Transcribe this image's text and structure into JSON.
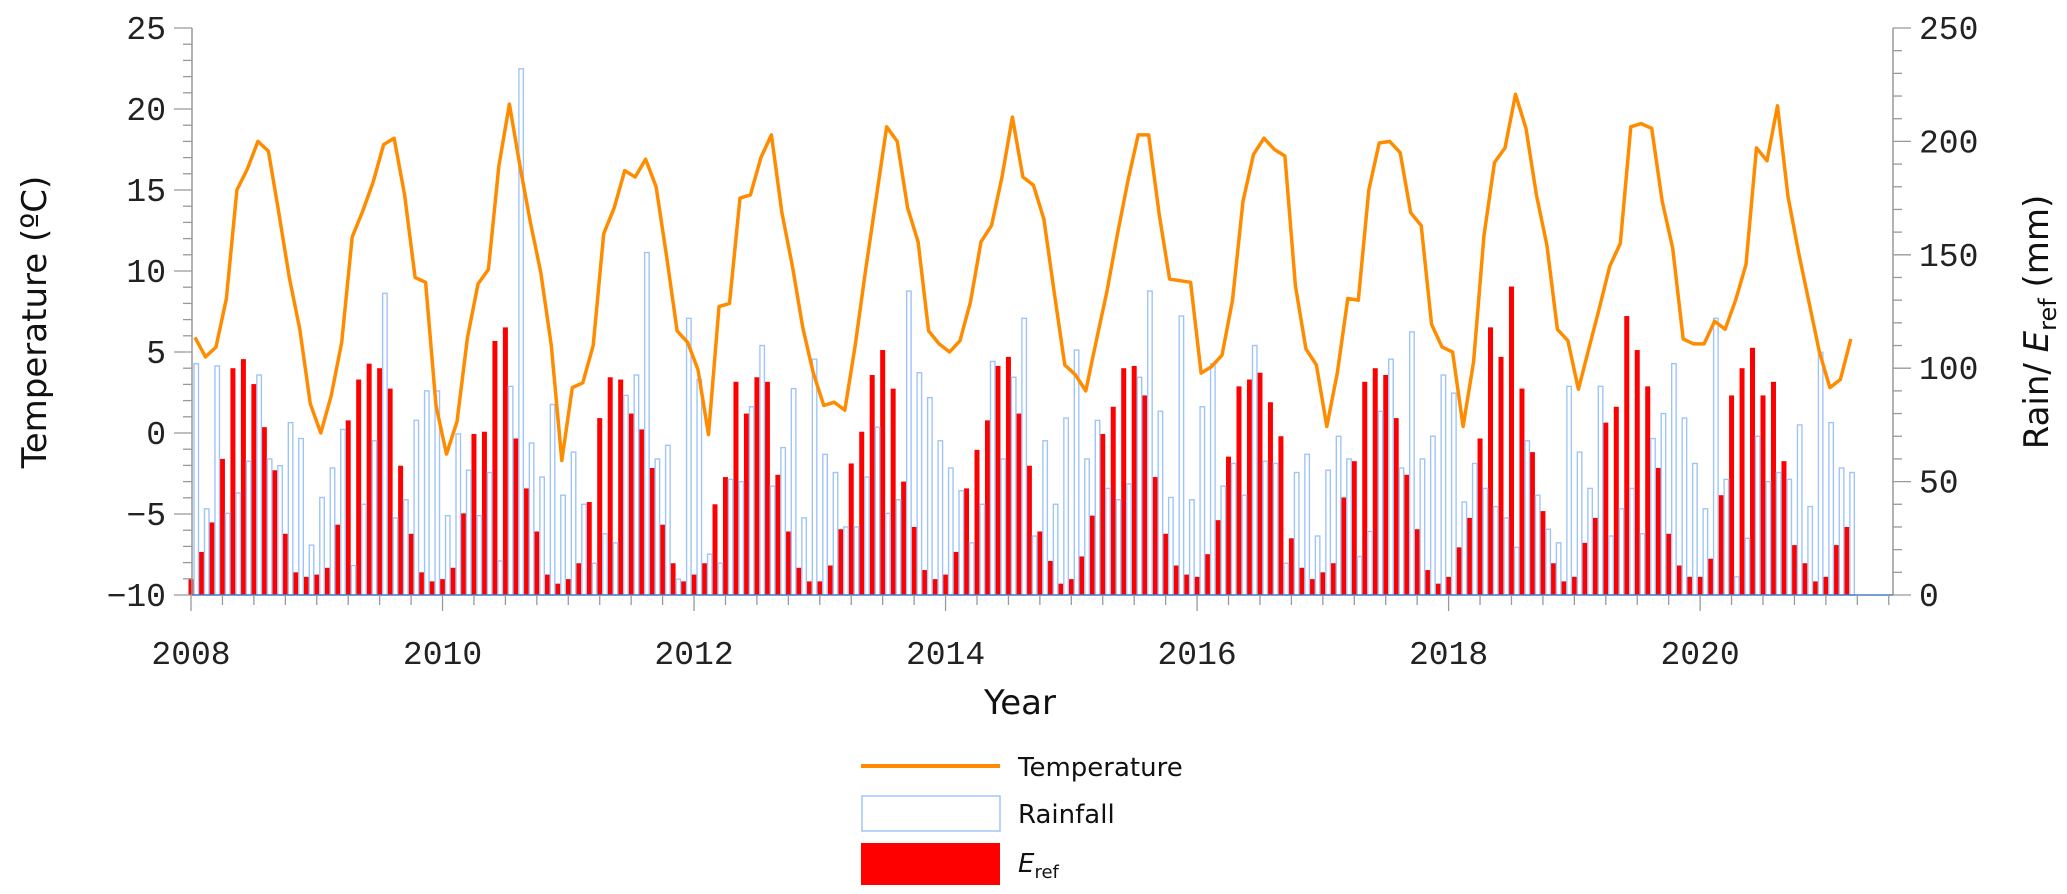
{
  "chart_data": {
    "type": "bar+line",
    "title": "",
    "xlabel": "Year",
    "ylabel_left": "Temperature (ºC)",
    "ylabel_right": {
      "prefix": "Rain/ ",
      "italic": "E",
      "sub": "ref",
      "suffix": " (mm)"
    },
    "start_month": "2008-01",
    "x_ticks": [
      "2008",
      "2010",
      "2012",
      "2014",
      "2016",
      "2018",
      "2020"
    ],
    "y_left_ticks": [
      "25",
      "20",
      "15",
      "10",
      "5",
      "0",
      "−10"
    ],
    "y_left_tick_values": [
      25,
      20,
      15,
      10,
      5,
      0,
      -5,
      -10
    ],
    "y_left_tick_labels": [
      "25",
      "20",
      "15",
      "10",
      "5",
      "0",
      "−5",
      "−10"
    ],
    "y_right_tick_values": [
      250,
      200,
      150,
      100,
      50,
      0
    ],
    "y_right_tick_labels": [
      "250",
      "200",
      "150",
      "100",
      "50",
      "0"
    ],
    "ylim_left": [
      -10,
      25
    ],
    "ylim_right": [
      0,
      250
    ],
    "grid": false,
    "legend_position": "bottom-center",
    "series": [
      {
        "name": "Temperature",
        "type": "line",
        "axis": "left",
        "color": "#FF8C00",
        "values": [
          5.9,
          4.7,
          5.3,
          8.3,
          15.0,
          16.3,
          18.0,
          17.4,
          13.6,
          9.6,
          6.4,
          1.8,
          0.0,
          2.3,
          5.6,
          12.1,
          13.7,
          15.5,
          17.8,
          18.2,
          14.7,
          9.6,
          9.3,
          1.7,
          -1.3,
          0.7,
          5.9,
          9.2,
          10.1,
          16.5,
          20.3,
          16.5,
          13.0,
          9.9,
          5.4,
          -1.7,
          2.8,
          3.1,
          5.4,
          12.3,
          13.9,
          16.2,
          15.8,
          16.9,
          15.2,
          10.9,
          6.3,
          5.6,
          3.9,
          -0.1,
          7.8,
          8.0,
          14.5,
          14.7,
          17.0,
          18.4,
          13.6,
          10.3,
          6.5,
          3.7,
          1.7,
          1.9,
          1.4,
          5.4,
          10.1,
          14.5,
          18.9,
          18.0,
          13.9,
          11.8,
          6.3,
          5.5,
          5.0,
          5.7,
          8.1,
          11.8,
          12.8,
          15.8,
          19.5,
          15.8,
          15.3,
          13.2,
          8.6,
          4.2,
          3.6,
          2.6,
          5.7,
          8.7,
          12.2,
          15.5,
          18.4,
          18.4,
          13.5,
          9.5,
          9.4,
          9.3,
          3.7,
          4.1,
          4.8,
          8.2,
          14.3,
          17.2,
          18.2,
          17.5,
          17.1,
          9.1,
          5.2,
          4.2,
          0.4,
          3.7,
          8.3,
          8.2,
          15.0,
          17.9,
          18.0,
          17.3,
          13.6,
          12.8,
          6.7,
          5.3,
          5.0,
          0.4,
          4.4,
          12.2,
          16.7,
          17.6,
          20.9,
          18.8,
          14.7,
          11.6,
          6.4,
          5.7,
          2.7,
          5.2,
          7.7,
          10.3,
          11.7,
          18.9,
          19.1,
          18.8,
          14.3,
          11.4,
          5.8,
          5.5,
          5.5,
          6.9,
          6.4,
          8.2,
          10.4,
          17.6,
          16.8,
          20.2,
          14.6,
          11.2,
          8.1,
          5.0,
          2.8,
          3.3,
          5.8
        ]
      },
      {
        "name": "Rainfall",
        "type": "bar",
        "axis": "right",
        "color": "#9FC5F8",
        "fill": "none",
        "values": [
          102,
          38,
          101,
          36,
          45,
          59,
          97,
          60,
          57,
          76,
          69,
          22,
          43,
          56,
          73,
          13,
          40,
          68,
          133,
          34,
          42,
          77,
          90,
          90,
          35,
          71,
          55,
          35,
          54,
          15,
          92,
          232,
          67,
          52,
          84,
          44,
          63,
          40,
          14,
          27,
          23,
          88,
          97,
          151,
          60,
          66,
          7,
          122,
          95,
          18,
          14,
          51,
          50,
          83,
          110,
          48,
          65,
          91,
          34,
          104,
          62,
          54,
          30,
          30,
          52,
          74,
          36,
          42,
          134,
          98,
          87,
          68,
          56,
          46,
          23,
          40,
          103,
          60,
          96,
          122,
          26,
          68,
          40,
          78,
          108,
          60,
          77,
          47,
          42,
          49,
          96,
          134,
          81,
          43,
          123,
          42,
          83,
          102,
          48,
          58,
          44,
          110,
          59,
          58,
          14,
          54,
          62,
          26,
          55,
          70,
          60,
          17,
          28,
          81,
          104,
          56,
          116,
          60,
          70,
          97,
          89,
          41,
          58,
          47,
          39,
          34,
          21,
          68,
          44,
          29,
          23,
          92,
          63,
          47,
          92,
          26,
          38,
          47,
          27,
          69,
          80,
          102,
          78,
          58,
          38,
          122,
          51,
          8,
          25,
          70,
          50,
          54,
          51,
          75,
          39,
          107,
          76,
          56,
          54
        ]
      },
      {
        "name": "E_ref",
        "type": "bar",
        "axis": "right",
        "color": "#FF0000",
        "values": [
          7,
          19,
          32,
          60,
          100,
          104,
          93,
          74,
          55,
          27,
          10,
          8,
          9,
          12,
          31,
          77,
          95,
          102,
          100,
          91,
          57,
          27,
          10,
          6,
          7,
          12,
          36,
          71,
          72,
          112,
          118,
          69,
          47,
          28,
          9,
          5,
          7,
          14,
          41,
          78,
          96,
          95,
          80,
          73,
          56,
          31,
          14,
          6,
          9,
          14,
          40,
          52,
          94,
          80,
          96,
          94,
          53,
          28,
          12,
          6,
          6,
          13,
          29,
          58,
          72,
          97,
          108,
          91,
          50,
          30,
          11,
          7,
          9,
          19,
          47,
          64,
          77,
          101,
          105,
          80,
          57,
          28,
          15,
          5,
          7,
          17,
          35,
          71,
          83,
          100,
          101,
          88,
          52,
          27,
          13,
          9,
          8,
          18,
          33,
          61,
          92,
          95,
          98,
          85,
          70,
          25,
          12,
          7,
          10,
          14,
          43,
          59,
          94,
          100,
          97,
          78,
          53,
          29,
          11,
          5,
          8,
          21,
          34,
          69,
          118,
          105,
          136,
          91,
          63,
          37,
          14,
          6,
          8,
          23,
          34,
          76,
          83,
          123,
          108,
          92,
          56,
          27,
          13,
          8,
          8,
          16,
          44,
          88,
          100,
          109,
          88,
          94,
          59,
          22,
          14,
          6,
          8,
          22,
          30
        ]
      }
    ],
    "legend": {
      "temperature": "Temperature",
      "rainfall": "Rainfall",
      "eref_main": "E",
      "eref_sub": "ref"
    }
  }
}
